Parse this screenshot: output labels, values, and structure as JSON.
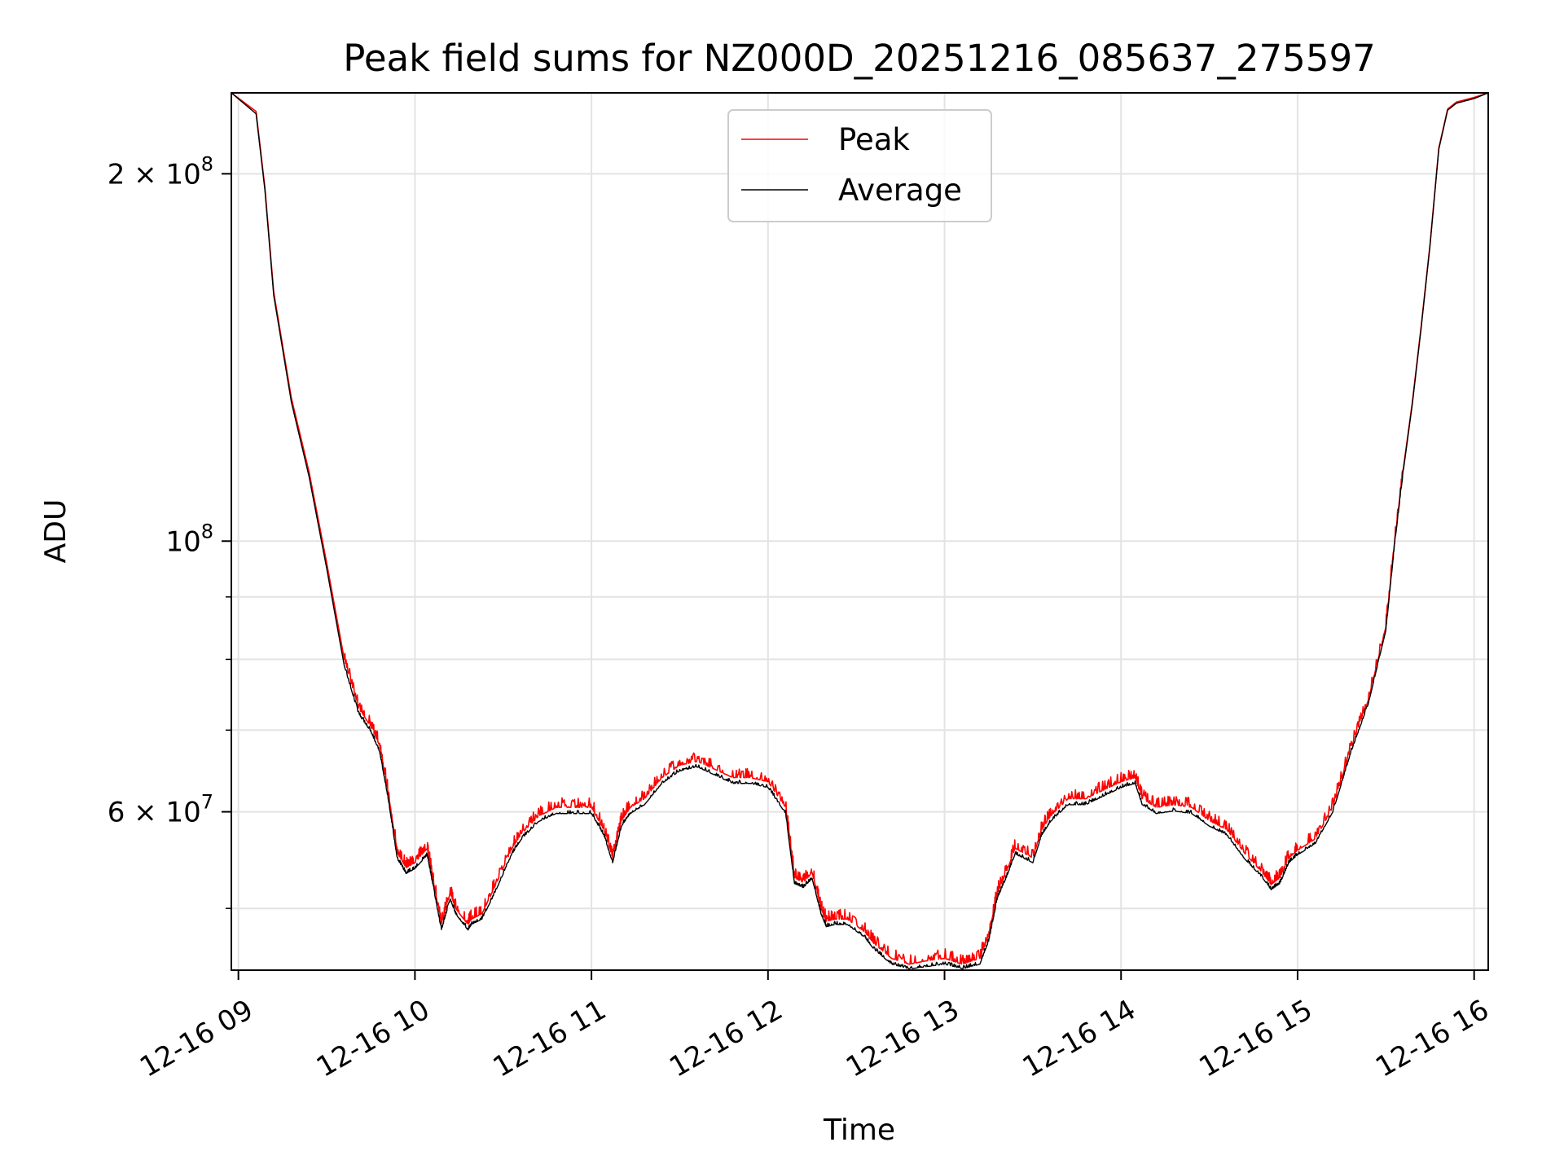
{
  "chart_data": {
    "type": "line",
    "title": "Peak field sums for NZ000D_20251216_085637_275597",
    "xlabel": "Time",
    "ylabel": "ADU",
    "xscale": "time (hours)",
    "yscale": "log",
    "xlim": [
      8.96,
      16.08
    ],
    "ylim": [
      44500000,
      233000000
    ],
    "grid": true,
    "legend_position": "upper-center",
    "x_ticks": [
      {
        "value": 9,
        "label": "12-16 09"
      },
      {
        "value": 10,
        "label": "12-16 10"
      },
      {
        "value": 11,
        "label": "12-16 11"
      },
      {
        "value": 12,
        "label": "12-16 12"
      },
      {
        "value": 13,
        "label": "12-16 13"
      },
      {
        "value": 14,
        "label": "12-16 14"
      },
      {
        "value": 15,
        "label": "12-16 15"
      },
      {
        "value": 16,
        "label": "12-16 16"
      }
    ],
    "y_major_ticks": [
      {
        "value": 100000000,
        "label": "10",
        "exp": "8",
        "mant": ""
      },
      {
        "value": 200000000,
        "label": "2 × 10",
        "exp": "8",
        "mant": "2"
      },
      {
        "value": 60000000,
        "label": "6 × 10",
        "exp": "7",
        "mant": "6"
      }
    ],
    "y_minor_ticks": [
      50000000,
      70000000,
      80000000,
      90000000
    ],
    "series": [
      {
        "name": "Peak",
        "color": "#ff0000",
        "x": [
          8.96,
          9.1,
          9.15,
          9.2,
          9.3,
          9.4,
          9.5,
          9.6,
          9.68,
          9.75,
          9.8,
          9.85,
          9.9,
          9.95,
          10.0,
          10.07,
          10.1,
          10.15,
          10.2,
          10.23,
          10.3,
          10.32,
          10.38,
          10.45,
          10.55,
          10.6,
          10.7,
          10.8,
          10.9,
          11.0,
          11.07,
          11.12,
          11.17,
          11.22,
          11.3,
          11.4,
          11.5,
          11.6,
          11.7,
          11.8,
          11.9,
          12.0,
          12.1,
          12.15,
          12.2,
          12.25,
          12.3,
          12.33,
          12.38,
          12.45,
          12.55,
          12.6,
          12.7,
          12.8,
          12.9,
          13.0,
          13.1,
          13.2,
          13.25,
          13.3,
          13.35,
          13.4,
          13.5,
          13.55,
          13.6,
          13.7,
          13.8,
          13.9,
          14.0,
          14.08,
          14.12,
          14.2,
          14.3,
          14.4,
          14.5,
          14.6,
          14.7,
          14.8,
          14.85,
          14.9,
          14.95,
          15.0,
          15.1,
          15.2,
          15.3,
          15.4,
          15.5,
          15.55,
          15.6,
          15.65,
          15.7,
          15.75,
          15.8,
          15.85,
          15.9,
          16.0,
          16.08
        ],
        "y": [
          233000000,
          225000000,
          195000000,
          160000000,
          131000000,
          114000000,
          96000000,
          80000000,
          73000000,
          70500000,
          68000000,
          62000000,
          55500000,
          54000000,
          54500000,
          56000000,
          53000000,
          48500000,
          51500000,
          50000000,
          48500000,
          49000000,
          49500000,
          52000000,
          56000000,
          57500000,
          59500000,
          60500000,
          60500000,
          60500000,
          58000000,
          55000000,
          59000000,
          60500000,
          61500000,
          64000000,
          65500000,
          66000000,
          65000000,
          64000000,
          64000000,
          63500000,
          60500000,
          53000000,
          52500000,
          53500000,
          50000000,
          48800000,
          49000000,
          49000000,
          47800000,
          46800000,
          45500000,
          45000000,
          45300000,
          45500000,
          45000000,
          45500000,
          47500000,
          51500000,
          53500000,
          56000000,
          55000000,
          58000000,
          59500000,
          61500000,
          61500000,
          62500000,
          63500000,
          64000000,
          61500000,
          60500000,
          60800000,
          60500000,
          59000000,
          58000000,
          55500000,
          53500000,
          52300000,
          53000000,
          55000000,
          55800000,
          57000000,
          60500000,
          67500000,
          74000000,
          85000000,
          100000000,
          115000000,
          130000000,
          150000000,
          175000000,
          210000000,
          226000000,
          229000000,
          231000000,
          233000000
        ]
      },
      {
        "name": "Average",
        "color": "#000000",
        "x": [
          8.96,
          9.1,
          9.15,
          9.2,
          9.3,
          9.4,
          9.5,
          9.6,
          9.68,
          9.75,
          9.8,
          9.85,
          9.9,
          9.95,
          10.0,
          10.07,
          10.1,
          10.15,
          10.2,
          10.23,
          10.3,
          10.32,
          10.38,
          10.45,
          10.55,
          10.6,
          10.7,
          10.8,
          10.9,
          11.0,
          11.07,
          11.12,
          11.17,
          11.22,
          11.3,
          11.4,
          11.5,
          11.6,
          11.7,
          11.8,
          11.9,
          12.0,
          12.1,
          12.15,
          12.2,
          12.25,
          12.3,
          12.33,
          12.38,
          12.45,
          12.55,
          12.6,
          12.7,
          12.8,
          12.9,
          13.0,
          13.1,
          13.2,
          13.25,
          13.3,
          13.35,
          13.4,
          13.5,
          13.55,
          13.6,
          13.7,
          13.8,
          13.9,
          14.0,
          14.08,
          14.12,
          14.2,
          14.3,
          14.4,
          14.5,
          14.6,
          14.7,
          14.8,
          14.85,
          14.9,
          14.95,
          15.0,
          15.1,
          15.2,
          15.3,
          15.4,
          15.5,
          15.55,
          15.6,
          15.65,
          15.7,
          15.75,
          15.8,
          15.85,
          15.9,
          16.0,
          16.08
        ],
        "y": [
          233000000,
          224000000,
          194000000,
          159000000,
          130000000,
          113000000,
          95000000,
          79000000,
          72200000,
          69800000,
          67200000,
          61300000,
          54900000,
          53400000,
          53900000,
          55300000,
          52400000,
          48000000,
          50900000,
          49500000,
          48000000,
          48500000,
          49000000,
          51400000,
          55400000,
          56900000,
          58900000,
          59800000,
          59800000,
          59800000,
          57400000,
          54500000,
          58400000,
          59800000,
          60800000,
          63300000,
          64800000,
          65300000,
          64300000,
          63300000,
          63300000,
          62800000,
          59800000,
          52400000,
          52000000,
          52900000,
          49500000,
          48300000,
          48500000,
          48500000,
          47300000,
          46300000,
          45000000,
          44600000,
          44800000,
          45000000,
          44600000,
          45000000,
          47000000,
          51000000,
          53000000,
          55400000,
          54500000,
          57400000,
          58900000,
          60800000,
          60800000,
          61800000,
          62800000,
          63300000,
          60800000,
          59800000,
          60100000,
          59800000,
          58400000,
          57400000,
          54900000,
          53000000,
          51800000,
          52400000,
          54500000,
          55300000,
          56500000,
          60000000,
          67000000,
          73500000,
          84500000,
          99500000,
          114500000,
          129500000,
          149500000,
          174500000,
          209500000,
          225500000,
          228500000,
          230500000,
          233000000
        ]
      }
    ]
  }
}
